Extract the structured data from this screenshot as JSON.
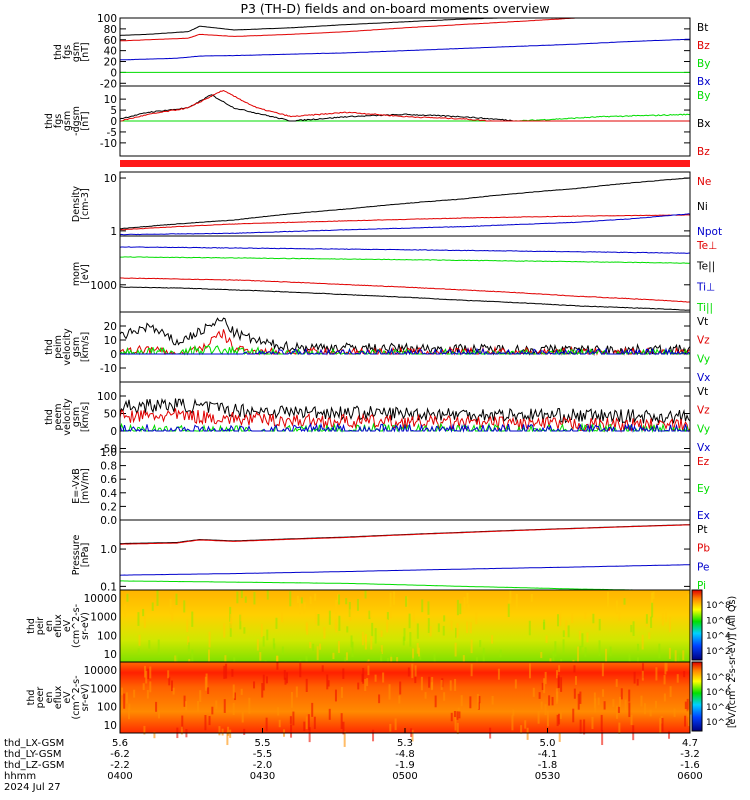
{
  "title": "P3 (TH-D) fields and on-board moments overview",
  "colors": {
    "black": "#000000",
    "red": "#e00000",
    "green": "#00dd00",
    "blue": "#0000cc",
    "bar_red": "#ff1a1a"
  },
  "chart_data": [
    {
      "id": "fgs_gsm",
      "type": "line",
      "ylabel": [
        "thd",
        "fgs",
        "gsm",
        "[nT]"
      ],
      "yticks": [
        "100",
        "80",
        "60",
        "40",
        "20",
        "0",
        "-20"
      ],
      "ylim": [
        -25,
        100
      ],
      "series": [
        {
          "name": "Bt",
          "color": "black",
          "x": [
            0,
            0.05,
            0.12,
            0.14,
            0.2,
            0.3,
            0.4,
            0.5,
            0.6,
            0.75,
            0.9,
            1.0
          ],
          "y": [
            68,
            70,
            75,
            85,
            78,
            82,
            88,
            93,
            98,
            103,
            110,
            118
          ]
        },
        {
          "name": "Bz",
          "color": "red",
          "x": [
            0,
            0.05,
            0.12,
            0.14,
            0.2,
            0.3,
            0.4,
            0.5,
            0.6,
            0.72,
            0.8,
            1.0
          ],
          "y": [
            58,
            60,
            63,
            70,
            66,
            70,
            75,
            82,
            88,
            95,
            100,
            106
          ]
        },
        {
          "name": "By",
          "color": "green",
          "x": [
            0,
            0.05,
            0.12,
            0.14,
            0.2,
            0.3,
            0.5,
            0.7,
            0.85,
            1.0
          ],
          "y": [
            -12,
            -14,
            -17,
            -22,
            -17,
            -17,
            -18,
            -18,
            -18,
            -19
          ]
        },
        {
          "name": "Bx",
          "color": "blue",
          "x": [
            0,
            0.1,
            0.14,
            0.2,
            0.4,
            0.6,
            0.8,
            0.9,
            1.0
          ],
          "y": [
            23,
            26,
            30,
            31,
            36,
            44,
            52,
            57,
            61
          ]
        }
      ]
    },
    {
      "id": "fgs_dgsm",
      "type": "line",
      "ylabel": [
        "thd",
        "fgs",
        "gsm",
        "-dgsm",
        "[nT]"
      ],
      "yticks": [
        "10",
        "5",
        "0",
        "-5",
        "-10"
      ],
      "ylim": [
        -16,
        16
      ],
      "series": [
        {
          "name": "By",
          "color": "green",
          "x": [
            0,
            0.05,
            0.1,
            0.15,
            0.18,
            0.22,
            0.3,
            0.4,
            0.5,
            0.6,
            0.7,
            0.85,
            1.0
          ],
          "y": [
            -1,
            -2,
            -1,
            -4,
            -15,
            -4,
            -2,
            -1,
            -1,
            -1,
            0,
            2,
            3
          ]
        },
        {
          "name": "Bx",
          "color": "black",
          "x": [
            0,
            0.05,
            0.12,
            0.16,
            0.2,
            0.25,
            0.3,
            0.4,
            0.5,
            0.6,
            0.7,
            0.8,
            0.9,
            1.0
          ],
          "y": [
            1,
            4,
            6,
            12,
            6,
            3,
            0,
            2,
            3,
            2,
            0,
            -2,
            -5,
            -6
          ]
        },
        {
          "name": "Bz",
          "color": "red",
          "x": [
            0,
            0.05,
            0.12,
            0.18,
            0.24,
            0.3,
            0.4,
            0.5,
            0.6,
            0.7,
            0.8,
            0.9,
            1.0
          ],
          "y": [
            0,
            3,
            6,
            14,
            6,
            2,
            4,
            2,
            1,
            -1,
            -3,
            -7,
            -12
          ]
        }
      ]
    },
    {
      "id": "density",
      "type": "line",
      "ylabel": [
        "Density",
        "[cm-3]"
      ],
      "ylog": true,
      "yticks": [
        "10",
        "1"
      ],
      "ylim": [
        0.8,
        13
      ],
      "series": [
        {
          "name": "Ne",
          "color": "red",
          "x": [
            0,
            0.2,
            0.4,
            0.6,
            0.8,
            1.0
          ],
          "y": [
            1.05,
            1.35,
            1.55,
            1.75,
            1.9,
            2.0
          ]
        },
        {
          "name": "Ni",
          "color": "black",
          "x": [
            0,
            0.2,
            0.4,
            0.6,
            0.8,
            1.0
          ],
          "y": [
            1.1,
            1.6,
            2.6,
            4.0,
            6.3,
            10
          ]
        },
        {
          "name": "Npot",
          "color": "blue",
          "x": [
            0,
            0.2,
            0.4,
            0.6,
            0.8,
            0.9,
            1.0
          ],
          "y": [
            0.85,
            0.9,
            1.05,
            1.2,
            1.45,
            1.7,
            2.1
          ]
        }
      ]
    },
    {
      "id": "moments",
      "type": "line",
      "ylabel": [
        "mom",
        "[eV]"
      ],
      "ylog": true,
      "yticks": [
        "1000"
      ],
      "ylim": [
        150,
        30000
      ],
      "series": [
        {
          "name": "Te⊥",
          "color": "red",
          "x": [
            0,
            0.1,
            0.2,
            0.4,
            0.6,
            0.8,
            1.0
          ],
          "y": [
            1600,
            1500,
            1400,
            1000,
            700,
            450,
            300
          ]
        },
        {
          "name": "Te||",
          "color": "black",
          "x": [
            0,
            0.1,
            0.2,
            0.4,
            0.6,
            0.8,
            1.0
          ],
          "y": [
            850,
            800,
            700,
            500,
            340,
            230,
            170
          ]
        },
        {
          "name": "Ti⊥",
          "color": "blue",
          "x": [
            0,
            0.2,
            0.4,
            0.6,
            0.8,
            1.0
          ],
          "y": [
            14000,
            13000,
            12000,
            11000,
            10000,
            9000
          ]
        },
        {
          "name": "Ti||",
          "color": "green",
          "x": [
            0,
            0.2,
            0.4,
            0.6,
            0.8,
            1.0
          ],
          "y": [
            7000,
            6500,
            6000,
            5500,
            5000,
            4500
          ]
        }
      ]
    },
    {
      "id": "peim_velocity",
      "type": "line",
      "ylabel": [
        "thd",
        "peim",
        "velocity",
        "gsm",
        "[km/s]"
      ],
      "yticks": [
        "20",
        "10",
        "0",
        "-10"
      ],
      "ylim": [
        -20,
        30
      ],
      "series": [
        {
          "name": "Vt",
          "color": "black",
          "x": [
            0,
            0.05,
            0.1,
            0.15,
            0.18,
            0.2,
            0.25,
            0.3,
            0.5,
            0.75,
            1.0
          ],
          "y": [
            12,
            20,
            8,
            18,
            25,
            15,
            8,
            5,
            4,
            3,
            3
          ]
        },
        {
          "name": "Vz",
          "color": "red",
          "x": [
            0,
            0.05,
            0.1,
            0.15,
            0.18,
            0.2,
            0.25,
            0.3,
            0.5,
            1.0
          ],
          "y": [
            0,
            4,
            -2,
            6,
            15,
            4,
            1,
            1,
            1,
            1
          ]
        },
        {
          "name": "Vy",
          "color": "green",
          "x": [
            0,
            0.05,
            0.1,
            0.15,
            0.2,
            0.3,
            0.5,
            1.0
          ],
          "y": [
            0,
            2,
            0,
            3,
            2,
            0,
            0,
            0
          ]
        },
        {
          "name": "Vx",
          "color": "blue",
          "x": [
            0,
            0.05,
            0.1,
            0.15,
            0.18,
            0.2,
            0.25,
            0.3,
            0.5,
            1.0
          ],
          "y": [
            -5,
            -8,
            -3,
            -10,
            -6,
            -2,
            -1,
            0,
            0,
            0
          ]
        }
      ]
    },
    {
      "id": "peem_velocity",
      "type": "line",
      "ylabel": [
        "thd",
        "peem",
        "velocity",
        "gsm",
        "[km/s]"
      ],
      "yticks": [
        "100",
        "50",
        "0",
        "-50"
      ],
      "ylim": [
        -60,
        140
      ],
      "series": [
        {
          "name": "Vt",
          "color": "black",
          "x": [
            0,
            0.1,
            0.2,
            0.3,
            0.5,
            0.75,
            1.0
          ],
          "y": [
            70,
            75,
            60,
            55,
            50,
            45,
            40
          ]
        },
        {
          "name": "Vz",
          "color": "red",
          "x": [
            0,
            0.1,
            0.2,
            0.3,
            0.5,
            0.75,
            1.0
          ],
          "y": [
            40,
            45,
            35,
            30,
            25,
            20,
            15
          ]
        },
        {
          "name": "Vy",
          "color": "green",
          "x": [
            0,
            0.1,
            0.2,
            0.3,
            0.5,
            0.75,
            1.0
          ],
          "y": [
            0,
            -5,
            -5,
            0,
            0,
            0,
            0
          ]
        },
        {
          "name": "Vx",
          "color": "blue",
          "x": [
            0,
            0.1,
            0.2,
            0.3,
            0.5,
            0.75,
            1.0
          ],
          "y": [
            5,
            0,
            -5,
            0,
            0,
            0,
            0
          ]
        }
      ]
    },
    {
      "id": "efield",
      "type": "line",
      "ylabel": [
        "E=-VxB",
        "[mV/m]"
      ],
      "yticks": [
        "1.0",
        "0.8",
        "0.6",
        "0.4",
        "0.2",
        "0.0"
      ],
      "ylim": [
        0,
        1
      ],
      "series": [
        {
          "name": "Ez",
          "color": "red",
          "x": [],
          "y": []
        },
        {
          "name": "Ey",
          "color": "green",
          "x": [],
          "y": []
        },
        {
          "name": "Ex",
          "color": "blue",
          "x": [],
          "y": []
        }
      ]
    },
    {
      "id": "pressure",
      "type": "line",
      "ylabel": [
        "Pressure",
        "[nPa]"
      ],
      "ylog": true,
      "yticks": [
        "1.0",
        "0.1"
      ],
      "ylim": [
        0.08,
        6
      ],
      "series": [
        {
          "name": "Pt",
          "color": "black",
          "x": [
            0,
            0.1,
            0.14,
            0.2,
            0.4,
            0.6,
            0.8,
            1.0
          ],
          "y": [
            1.4,
            1.5,
            1.8,
            1.65,
            2.1,
            2.8,
            3.6,
            4.5
          ]
        },
        {
          "name": "Pb",
          "color": "red",
          "x": [
            0,
            0.1,
            0.14,
            0.2,
            0.4,
            0.6,
            0.8,
            1.0
          ],
          "y": [
            1.35,
            1.45,
            1.75,
            1.6,
            2.05,
            2.75,
            3.55,
            4.45
          ]
        },
        {
          "name": "Pe",
          "color": "blue",
          "x": [
            0,
            0.2,
            0.4,
            0.6,
            0.8,
            1.0
          ],
          "y": [
            0.2,
            0.22,
            0.25,
            0.29,
            0.33,
            0.38
          ]
        },
        {
          "name": "Pi",
          "color": "green",
          "x": [
            0,
            0.2,
            0.4,
            0.6,
            0.8,
            1.0
          ],
          "y": [
            0.14,
            0.13,
            0.12,
            0.1,
            0.085,
            0.075
          ]
        }
      ]
    },
    {
      "id": "peir_eflux",
      "type": "heatmap",
      "ylabel": [
        "thd",
        "peir",
        "en",
        "eflux",
        "eV",
        "(cm^2-s-",
        "sr-eV)"
      ],
      "yticks": [
        "10000",
        "1000",
        "100",
        "10"
      ]
    },
    {
      "id": "peer_eflux",
      "type": "heatmap",
      "ylabel": [
        "thd",
        "peer",
        "en",
        "eflux",
        "eV",
        "(cm^2-s-",
        "sr-eV)"
      ],
      "yticks": [
        "10000",
        "1000",
        "100",
        "10"
      ]
    }
  ],
  "colorbars": [
    {
      "ticks": [
        "10^8",
        "10^6",
        "10^4",
        "10^2"
      ]
    },
    {
      "ticks": [
        "10^8",
        "10^6",
        "10^4",
        "10^2"
      ]
    }
  ],
  "colorbar_label": "[eV/(cm^2-s-sr-eV)] (All Qs)",
  "xaxis": {
    "rows": [
      {
        "name": "thd_LX-GSM",
        "values": [
          "5.6",
          "5.5",
          "5.3",
          "5.0",
          "4.7"
        ]
      },
      {
        "name": "thd_LY-GSM",
        "values": [
          "-6.2",
          "-5.5",
          "-4.8",
          "-4.1",
          "-3.2"
        ]
      },
      {
        "name": "thd_LZ-GSM",
        "values": [
          "-2.2",
          "-2.0",
          "-1.9",
          "-1.8",
          "-1.6"
        ]
      },
      {
        "name": "hhmm",
        "values": [
          "0400",
          "0430",
          "0500",
          "0530",
          "0600"
        ]
      }
    ],
    "date": "2024 Jul 27"
  }
}
